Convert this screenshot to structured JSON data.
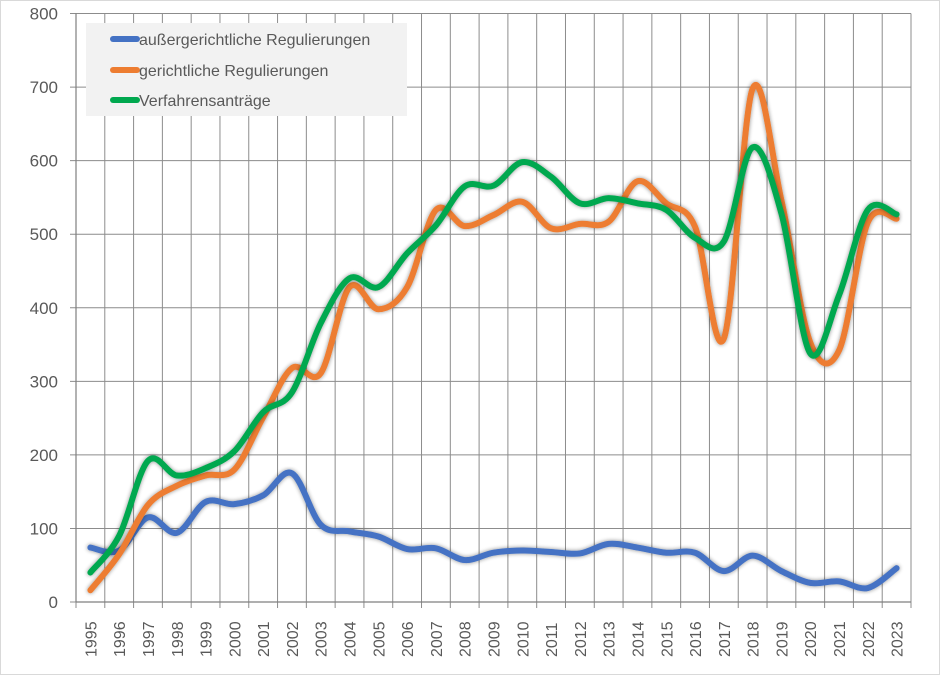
{
  "chart_data": {
    "type": "line",
    "title": "",
    "xlabel": "",
    "ylabel": "",
    "ylim": [
      0,
      800
    ],
    "y_ticks": [
      0,
      100,
      200,
      300,
      400,
      500,
      600,
      700,
      800
    ],
    "grid": true,
    "smooth": true,
    "legend_position": "top-left",
    "categories": [
      "1995",
      "1996",
      "1997",
      "1998",
      "1999",
      "2000",
      "2001",
      "2002",
      "2003",
      "2004",
      "2005",
      "2006",
      "2007",
      "2008",
      "2009",
      "2010",
      "2011",
      "2012",
      "2013",
      "2014",
      "2015",
      "2016",
      "2017",
      "2018",
      "2019",
      "2020",
      "2021",
      "2022",
      "2023"
    ],
    "series": [
      {
        "name": "außergerichtliche Regulierungen",
        "color": "#4472C4",
        "values": [
          74,
          70,
          115,
          94,
          136,
          133,
          145,
          175,
          105,
          96,
          89,
          72,
          73,
          57,
          67,
          70,
          68,
          66,
          79,
          74,
          67,
          67,
          42,
          63,
          42,
          26,
          28,
          19,
          46
        ]
      },
      {
        "name": "gerichtliche Regulierungen",
        "color": "#ED7D31",
        "values": [
          16,
          65,
          132,
          158,
          172,
          180,
          251,
          318,
          311,
          428,
          398,
          428,
          533,
          511,
          526,
          544,
          508,
          514,
          517,
          572,
          542,
          510,
          358,
          698,
          546,
          353,
          342,
          516,
          521
        ]
      },
      {
        "name": "Verfahrensanträge",
        "color": "#00A84F",
        "values": [
          40,
          90,
          192,
          172,
          182,
          205,
          258,
          285,
          379,
          440,
          428,
          474,
          512,
          565,
          566,
          598,
          578,
          542,
          549,
          542,
          533,
          495,
          490,
          618,
          528,
          338,
          417,
          533,
          527
        ]
      }
    ]
  }
}
